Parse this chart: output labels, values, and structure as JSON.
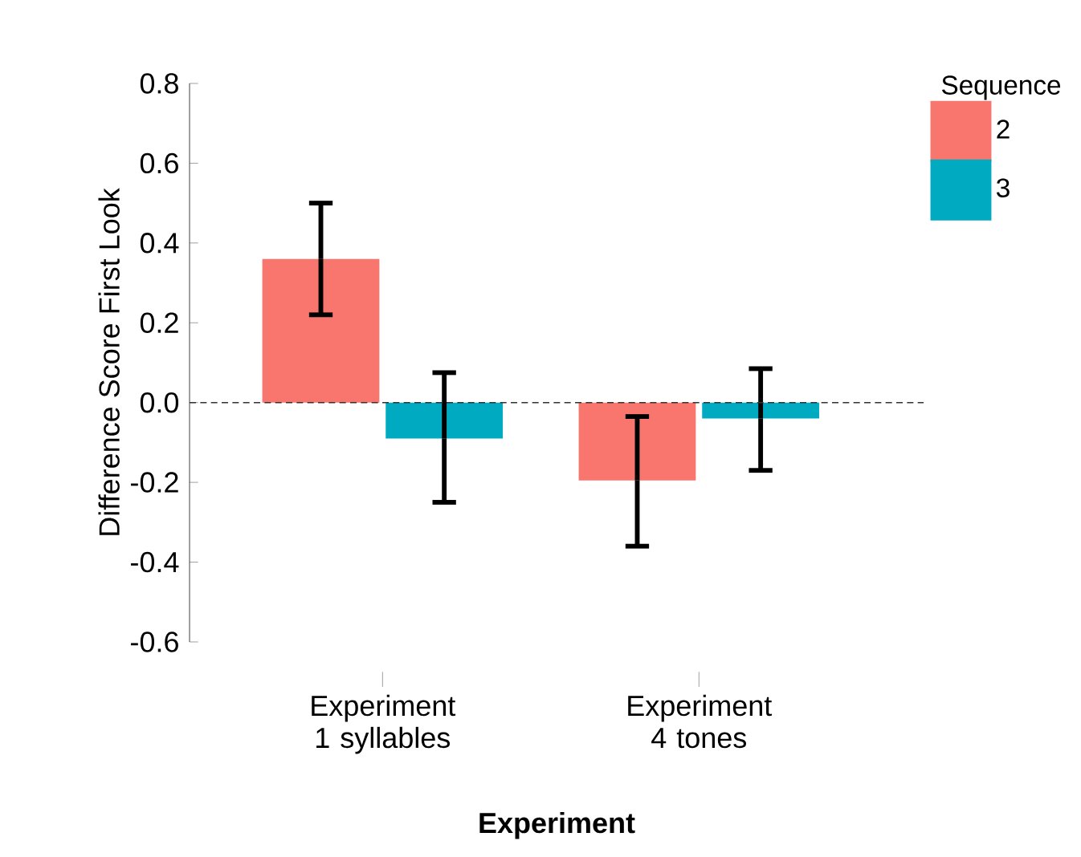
{
  "chart_data": {
    "type": "bar",
    "xlabel": "Experiment",
    "ylabel": "Difference Score First Look",
    "legend_title": "Sequence",
    "categories": [
      "Experiment 1 syllables",
      "Experiment 4 tones"
    ],
    "series": [
      {
        "name": "2",
        "color": "#f8766d",
        "values": [
          0.36,
          -0.195
        ],
        "errors": [
          [
            0.22,
            0.5
          ],
          [
            -0.36,
            -0.035
          ]
        ]
      },
      {
        "name": "3",
        "color": "#00abc2",
        "values": [
          -0.09,
          -0.04
        ],
        "errors": [
          [
            -0.25,
            0.075
          ],
          [
            -0.17,
            0.085
          ]
        ]
      }
    ],
    "ylim": [
      -0.6,
      0.8
    ],
    "yticks": [
      {
        "value": -0.6,
        "label": "-0.6"
      },
      {
        "value": -0.4,
        "label": "-0.4"
      },
      {
        "value": -0.2,
        "label": "-0.2"
      },
      {
        "value": 0,
        "label": "0.0"
      },
      {
        "value": 0.2,
        "label": "0.2"
      },
      {
        "value": 0.4,
        "label": "0.4"
      },
      {
        "value": 0.6,
        "label": "0.6"
      },
      {
        "value": 0.8,
        "label": "0.8"
      }
    ],
    "ref_lines": [
      {
        "axis": "y",
        "value": 0,
        "line_style": "dashed"
      }
    ],
    "grid": false,
    "legend": "top right"
  }
}
